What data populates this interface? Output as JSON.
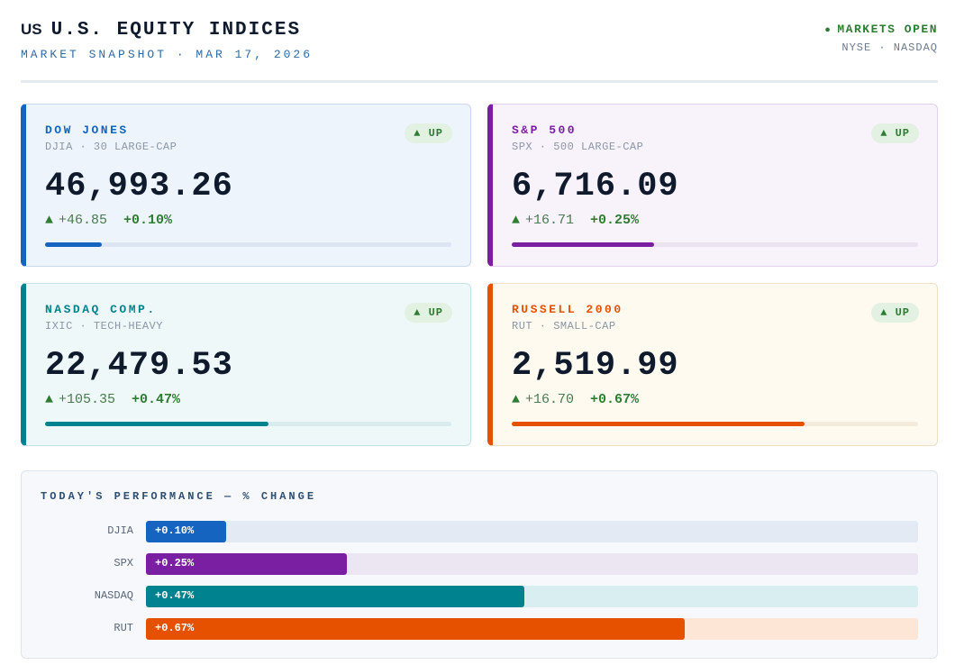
{
  "header": {
    "flag": "US",
    "title": "U.S. EQUITY INDICES",
    "subtitle": "MARKET SNAPSHOT · MAR 17, 2026",
    "status": "MARKETS OPEN",
    "exchanges": "NYSE · NASDAQ",
    "status_color": "#2e7d32"
  },
  "cards": [
    {
      "name": "DOW JONES",
      "desc": "DJIA · 30 LARGE-CAP",
      "badge": "▲ UP",
      "value": "46,993.26",
      "change": "+46.85",
      "pct": "+0.10%",
      "arrow": "▲",
      "accent": "#1565c0",
      "bg": "#eef4fb",
      "border": "#c9d9ec",
      "track": "#dde5f2",
      "level": 0.14
    },
    {
      "name": "S&P 500",
      "desc": "SPX · 500 LARGE-CAP",
      "badge": "▲ UP",
      "value": "6,716.09",
      "change": "+16.71",
      "pct": "+0.25%",
      "arrow": "▲",
      "accent": "#7b1fa2",
      "bg": "#f8f2fb",
      "border": "#e2d0ec",
      "track": "#ebe4f0",
      "level": 0.35
    },
    {
      "name": "NASDAQ COMP.",
      "desc": "IXIC · TECH-HEAVY",
      "badge": "▲ UP",
      "value": "22,479.53",
      "change": "+105.35",
      "pct": "+0.47%",
      "arrow": "▲",
      "accent": "#00838f",
      "bg": "#eef8f8",
      "border": "#c8e3e5",
      "track": "#d9ebec",
      "level": 0.55
    },
    {
      "name": "RUSSELL 2000",
      "desc": "RUT · SMALL-CAP",
      "badge": "▲ UP",
      "value": "2,519.99",
      "change": "+16.70",
      "pct": "+0.67%",
      "arrow": "▲",
      "accent": "#e65100",
      "bg": "#fefaf0",
      "border": "#efe0c4",
      "track": "#f4ebdd",
      "level": 0.72
    }
  ],
  "performance": {
    "title": "TODAY'S PERFORMANCE — % CHANGE",
    "bars": [
      {
        "label": "DJIA",
        "text": "+0.10%",
        "value": 0.1,
        "color": "#1565c0",
        "track": "#e4eaf4"
      },
      {
        "label": "SPX",
        "text": "+0.25%",
        "value": 0.25,
        "color": "#7b1fa2",
        "track": "#ece6f3"
      },
      {
        "label": "NASDAQ",
        "text": "+0.47%",
        "value": 0.47,
        "color": "#00838f",
        "track": "#d8eef0"
      },
      {
        "label": "RUT",
        "text": "+0.67%",
        "value": 0.67,
        "color": "#e65100",
        "track": "#fde6d6"
      }
    ],
    "scale_max": 0.96
  }
}
